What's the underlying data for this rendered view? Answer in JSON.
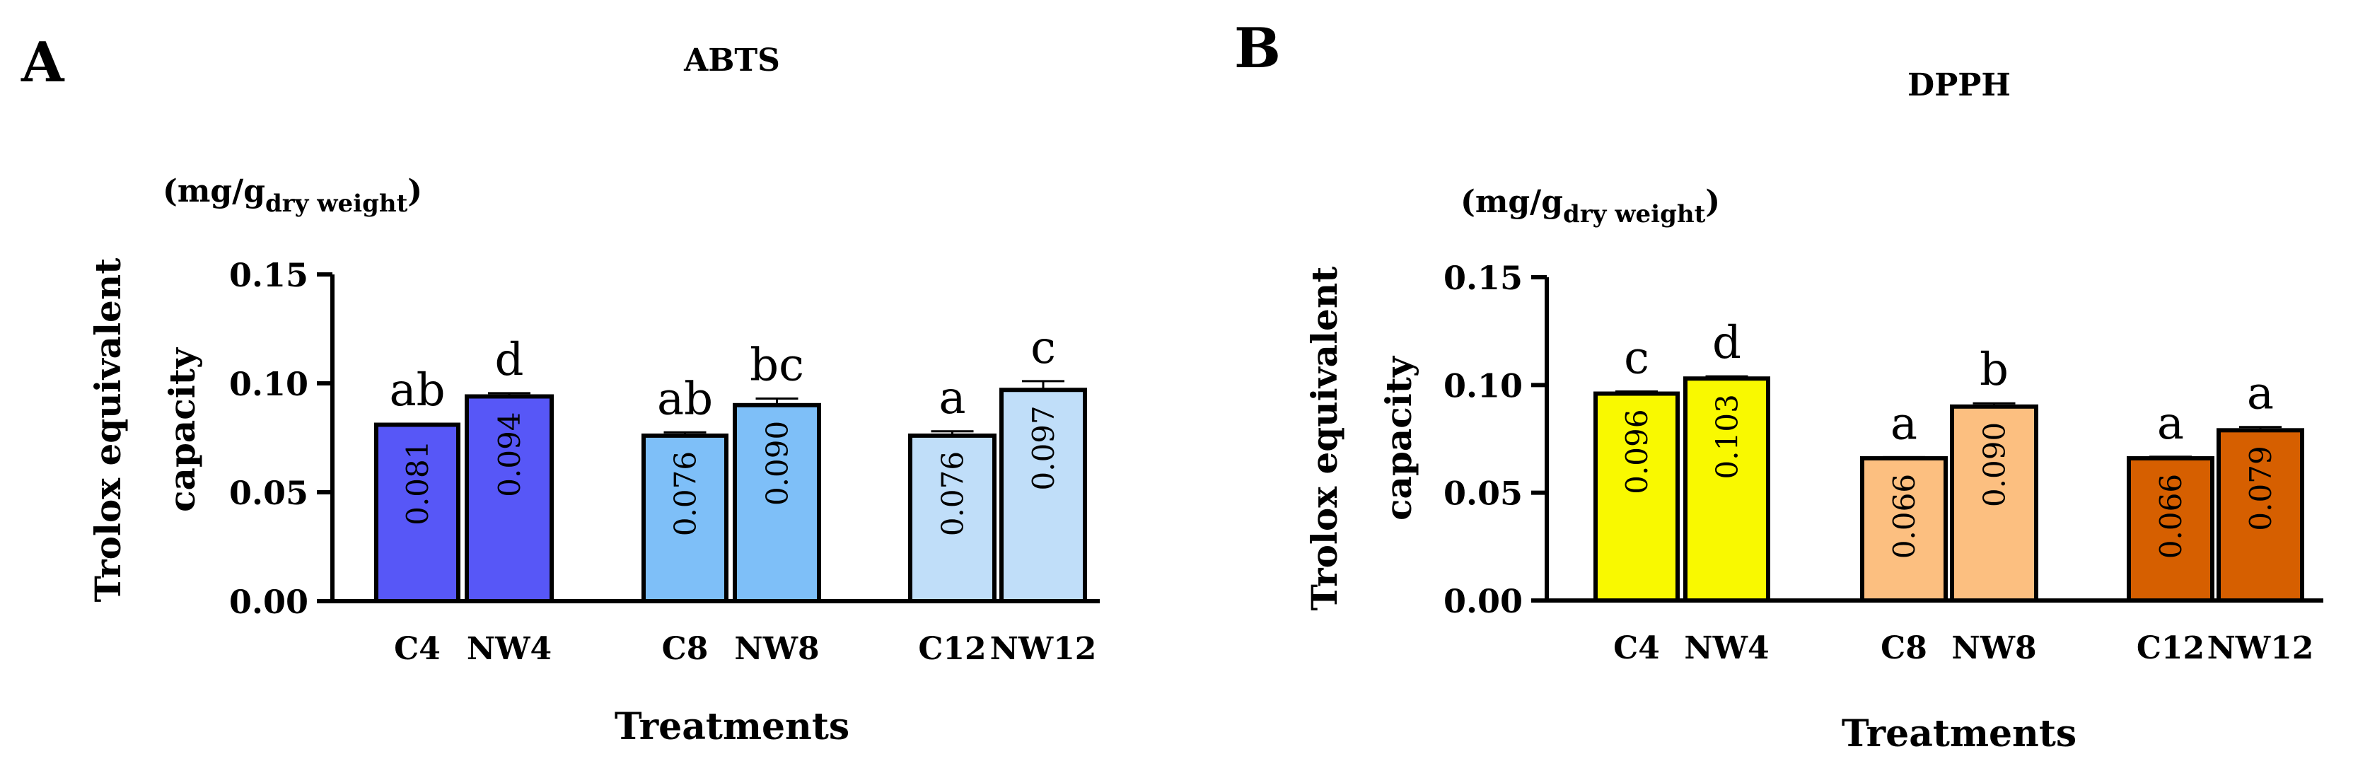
{
  "colors": {
    "abts": [
      "#5757f7",
      "#5757f7",
      "#7ebff8",
      "#7ebff8",
      "#c0def9",
      "#c0def9"
    ],
    "dpph": [
      "#f9f900",
      "#f9f900",
      "#fcbf80",
      "#fcbf80",
      "#d65f00",
      "#d65f00"
    ],
    "stroke": "#000000"
  },
  "chart_data": [
    {
      "type": "bar",
      "panel_label": "A",
      "title": "ABTS",
      "unit_main": "(mg/g",
      "unit_sub": "dry weight",
      "unit_close": ")",
      "ylabel_line1": "Trolox equivalent",
      "ylabel_line2": "capacity",
      "xlabel": "Treatments",
      "ylim": [
        0,
        0.15
      ],
      "yticks": [
        0.0,
        0.05,
        0.1,
        0.15
      ],
      "ytick_labels": [
        "0.00",
        "0.05",
        "0.10",
        "0.15"
      ],
      "categories": [
        "C4",
        "NW4",
        "C8",
        "NW8",
        "C12",
        "NW12"
      ],
      "values": [
        0.081,
        0.094,
        0.076,
        0.09,
        0.076,
        0.097
      ],
      "value_labels": [
        "0.081",
        "0.094",
        "0.076",
        "0.090",
        "0.076",
        "0.097"
      ],
      "errors": [
        0.0005,
        0.0015,
        0.0015,
        0.003,
        0.002,
        0.004
      ],
      "letters": [
        "ab",
        "d",
        "ab",
        "bc",
        "a",
        "c"
      ]
    },
    {
      "type": "bar",
      "panel_label": "B",
      "title": "DPPH",
      "unit_main": "(mg/g",
      "unit_sub": "dry weight",
      "unit_close": ")",
      "ylabel_line1": "Trolox equivalent",
      "ylabel_line2": "capacity",
      "xlabel": "Treatments",
      "ylim": [
        0,
        0.15
      ],
      "yticks": [
        0.0,
        0.05,
        0.1,
        0.15
      ],
      "ytick_labels": [
        "0.00",
        "0.05",
        "0.10",
        "0.15"
      ],
      "categories": [
        "C4",
        "NW4",
        "C8",
        "NW8",
        "C12",
        "NW12"
      ],
      "values": [
        0.096,
        0.103,
        0.066,
        0.09,
        0.066,
        0.079
      ],
      "value_labels": [
        "0.096",
        "0.103",
        "0.066",
        "0.090",
        "0.066",
        "0.079"
      ],
      "errors": [
        0.001,
        0.001,
        0.0005,
        0.0015,
        0.0007,
        0.0015
      ],
      "letters": [
        "c",
        "d",
        "a",
        "b",
        "a",
        "a"
      ]
    }
  ]
}
